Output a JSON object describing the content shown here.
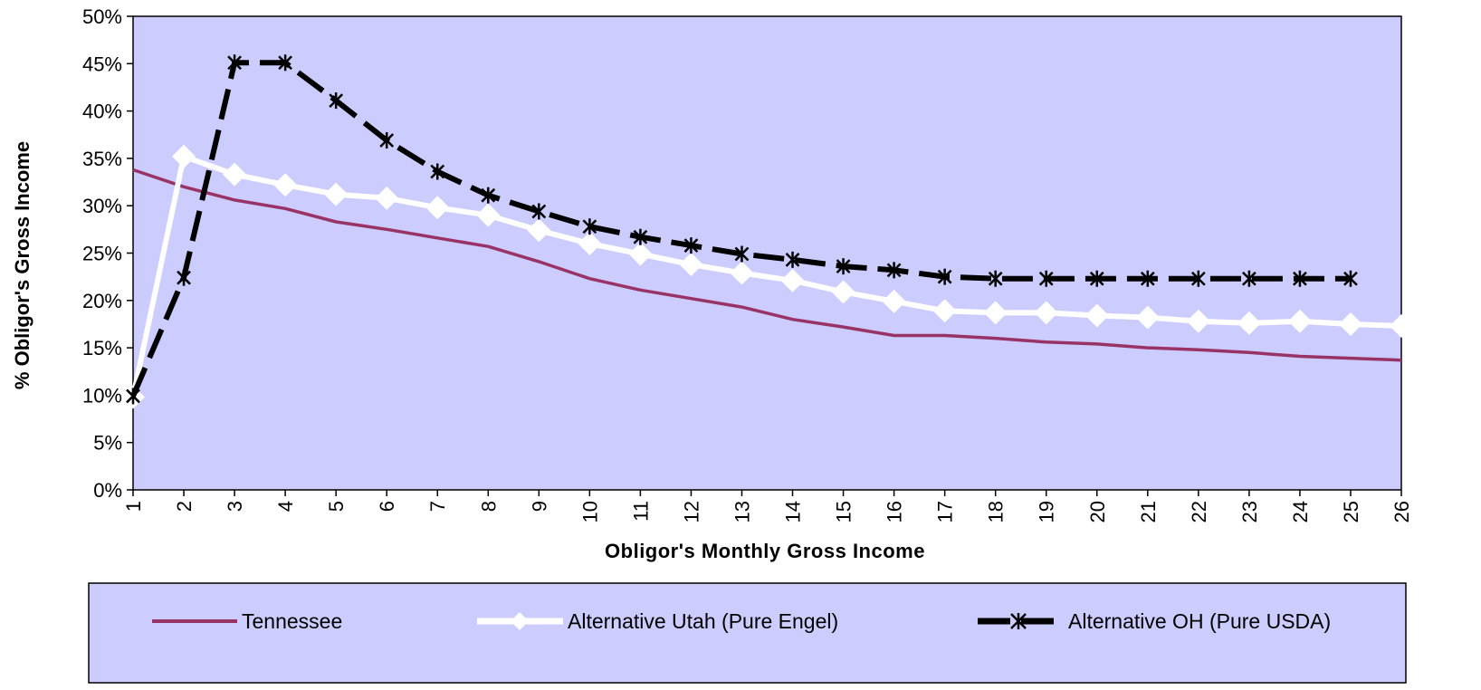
{
  "chart_data": {
    "type": "line",
    "title": "",
    "xlabel": "Obligor's Monthly Gross Income",
    "ylabel": "% Obligor's Gross Income",
    "x": [
      1,
      2,
      3,
      4,
      5,
      6,
      7,
      8,
      9,
      10,
      11,
      12,
      13,
      14,
      15,
      16,
      17,
      18,
      19,
      20,
      21,
      22,
      23,
      24,
      25,
      26
    ],
    "x_tick_labels": [
      "1",
      "2",
      "3",
      "4",
      "5",
      "6",
      "7",
      "8",
      "9",
      "10",
      "11",
      "12",
      "13",
      "14",
      "15",
      "16",
      "17",
      "18",
      "19",
      "20",
      "21",
      "22",
      "23",
      "24",
      "25",
      "26"
    ],
    "ylim": [
      0,
      50
    ],
    "y_tick_labels": [
      "0%",
      "5%",
      "10%",
      "15%",
      "20%",
      "25%",
      "30%",
      "35%",
      "40%",
      "45%",
      "50%"
    ],
    "grid": false,
    "legend_position": "bottom",
    "series": [
      {
        "name": "Tennessee",
        "color": "#993366",
        "marker": "none",
        "values": [
          33.8,
          32.0,
          30.6,
          29.7,
          28.3,
          27.5,
          26.6,
          25.7,
          24.1,
          22.3,
          21.1,
          20.2,
          19.3,
          18.0,
          17.2,
          16.3,
          16.3,
          16.0,
          15.6,
          15.4,
          15.0,
          14.8,
          14.5,
          14.1,
          13.9,
          13.7
        ]
      },
      {
        "name": "Alternative Utah (Pure Engel)",
        "color": "#ffffff",
        "marker": "diamond",
        "values": [
          9.8,
          35.2,
          33.3,
          32.2,
          31.2,
          30.8,
          29.8,
          29.0,
          27.4,
          26.0,
          24.9,
          23.8,
          22.9,
          22.1,
          20.9,
          19.9,
          18.9,
          18.7,
          18.7,
          18.4,
          18.2,
          17.8,
          17.6,
          17.8,
          17.5,
          17.3
        ]
      },
      {
        "name": "Alternative OH (Pure USDA)",
        "color": "#000000",
        "marker": "star",
        "dashed": true,
        "values": [
          9.9,
          22.4,
          45.1,
          45.1,
          41.1,
          36.9,
          33.6,
          31.1,
          29.4,
          27.8,
          26.7,
          25.8,
          24.9,
          24.3,
          23.6,
          23.2,
          22.5,
          22.3,
          22.3,
          22.3,
          22.3,
          22.3,
          22.3,
          22.3,
          22.3,
          null
        ]
      }
    ]
  }
}
